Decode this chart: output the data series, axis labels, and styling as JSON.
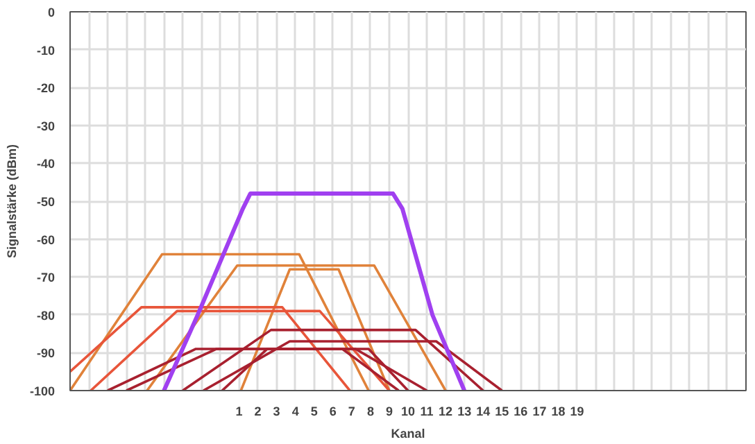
{
  "chart_data": {
    "type": "line",
    "xlabel": "Kanal",
    "ylabel": "Signalstärke (dBm)",
    "xlim": [
      -8,
      28
    ],
    "ylim": [
      -100,
      0
    ],
    "xticks": [
      {
        "value": -7,
        "label": null
      },
      {
        "value": -6,
        "label": null
      },
      {
        "value": -5,
        "label": null
      },
      {
        "value": -4,
        "label": null
      },
      {
        "value": -3,
        "label": null
      },
      {
        "value": -2,
        "label": null
      },
      {
        "value": -1,
        "label": null
      },
      {
        "value": 0,
        "label": null
      },
      1,
      2,
      3,
      4,
      5,
      6,
      7,
      8,
      9,
      10,
      11,
      12,
      13,
      14,
      15,
      16,
      17,
      18,
      19,
      {
        "value": 20,
        "label": null
      },
      {
        "value": 21,
        "label": null
      },
      {
        "value": 22,
        "label": null
      },
      {
        "value": 23,
        "label": null
      },
      {
        "value": 24,
        "label": null
      },
      {
        "value": 25,
        "label": null
      },
      {
        "value": 26,
        "label": null
      },
      {
        "value": 27,
        "label": null
      }
    ],
    "yticks": [
      0,
      -10,
      -20,
      -30,
      -40,
      -50,
      -60,
      -70,
      -80,
      -90,
      -100
    ],
    "grid": true,
    "marker": "none",
    "line_style": "solid",
    "series": [
      {
        "color": "#e0823a",
        "x": [
          -8,
          -3.1,
          4.2,
          7.9
        ],
        "values": [
          -100,
          -64,
          -64,
          -100
        ]
      },
      {
        "color": "#e0823a",
        "x": [
          -3.9,
          0.9,
          8.2,
          12
        ],
        "values": [
          -100,
          -67,
          -67,
          -100
        ]
      },
      {
        "color": "#e0823a",
        "x": [
          1.1,
          3.7,
          6.3,
          9
        ],
        "values": [
          -100,
          -68,
          -68,
          -100
        ]
      },
      {
        "color": "#e8553a",
        "x": [
          -8,
          -4.2,
          3.3,
          6.9
        ],
        "values": [
          -95,
          -78,
          -78,
          -100
        ]
      },
      {
        "color": "#e8553a",
        "x": [
          -6.9,
          -2.3,
          5.3,
          9
        ],
        "values": [
          -100,
          -79,
          -79,
          -100
        ]
      },
      {
        "color": "#a8202f",
        "x": [
          -2,
          2.7,
          10.4,
          14
        ],
        "values": [
          -100,
          -84,
          -84,
          -100
        ]
      },
      {
        "color": "#a8202f",
        "x": [
          -0.9,
          3.7,
          11.5,
          15
        ],
        "values": [
          -100,
          -87,
          -87,
          -100
        ]
      },
      {
        "color": "#a8202f",
        "x": [
          -6,
          -1.3,
          7.2,
          11
        ],
        "values": [
          -100,
          -89,
          -89,
          -100
        ]
      },
      {
        "color": "#a8202f",
        "x": [
          -5,
          -0.2,
          7.9,
          10
        ],
        "values": [
          -100,
          -89,
          -89,
          -100
        ]
      },
      {
        "color": "#a8202f",
        "x": [
          0.1,
          2.5,
          6.5,
          9.5
        ],
        "values": [
          -100,
          -89,
          -89,
          -100
        ]
      },
      {
        "color": "#a040f0",
        "x": [
          -3,
          -1.2,
          1.2,
          1.6,
          9.2,
          9.7,
          11.3,
          13
        ],
        "values": [
          -100,
          -80,
          -52,
          -48,
          -48,
          -52,
          -80,
          -100
        ]
      }
    ]
  }
}
